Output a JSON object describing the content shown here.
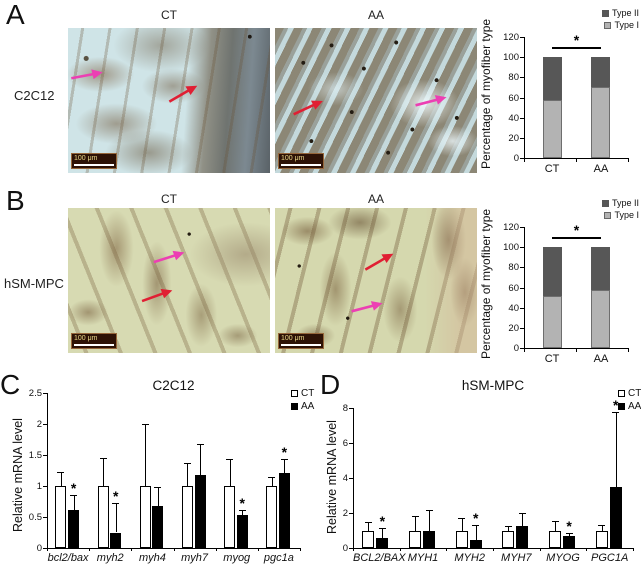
{
  "figure": {
    "panels": [
      {
        "letter": "A",
        "row_label": "C2C12",
        "columns": [
          "CT",
          "AA"
        ],
        "scale_bar_label": "100 μm"
      },
      {
        "letter": "B",
        "row_label": "hSM-MPC",
        "columns": [
          "CT",
          "AA"
        ],
        "scale_bar_label": "100 μm"
      },
      {
        "letter": "C"
      },
      {
        "letter": "D"
      }
    ]
  },
  "colors": {
    "arrow_red": "#e01f33",
    "arrow_magenta": "#ec3fb3",
    "type1_gray": "#b3b3b3",
    "type2_gray": "#575757",
    "ct_bar": "#ffffff",
    "aa_bar": "#000000",
    "scalebar_bg": "#2d1206",
    "scalebar_text": "#ead98a"
  },
  "chart_data": [
    {
      "id": "A",
      "type": "stacked-bar",
      "ylabel": "Percentage of myofiber type",
      "ylim": [
        0,
        120
      ],
      "yticks": [
        "0",
        "20",
        "40",
        "60",
        "80",
        "100",
        "120"
      ],
      "categories": [
        "CT",
        "AA"
      ],
      "series": [
        {
          "name": "Type I",
          "color": "#b3b3b3",
          "values": [
            58,
            70
          ]
        },
        {
          "name": "Type II",
          "color": "#575757",
          "values": [
            42,
            30
          ]
        }
      ],
      "legend_order": [
        "Type II",
        "Type I"
      ],
      "significance": {
        "symbol": "*",
        "y": 110
      }
    },
    {
      "id": "B",
      "type": "stacked-bar",
      "ylabel": "Percentage of myofiber type",
      "ylim": [
        0,
        120
      ],
      "yticks": [
        "0",
        "20",
        "40",
        "60",
        "80",
        "100",
        "120"
      ],
      "categories": [
        "CT",
        "AA"
      ],
      "series": [
        {
          "name": "Type I",
          "color": "#b3b3b3",
          "values": [
            52,
            58
          ]
        },
        {
          "name": "Type II",
          "color": "#575757",
          "values": [
            48,
            42
          ]
        }
      ],
      "legend_order": [
        "Type II",
        "Type I"
      ],
      "significance": {
        "symbol": "*",
        "y": 110
      }
    },
    {
      "id": "C",
      "type": "grouped-bar",
      "title": "C2C12",
      "ylabel": "Relative mRNA level",
      "ylim": [
        0,
        2.5
      ],
      "yticks": [
        "0",
        "0.5",
        "1",
        "1.5",
        "2",
        "2.5"
      ],
      "categories": [
        "bcl2/bax",
        "myh2",
        "myh4",
        "myh7",
        "myog",
        "pgc1a"
      ],
      "xtick_italic": true,
      "series": [
        {
          "name": "CT",
          "color": "#ffffff",
          "values": [
            1,
            1,
            1,
            1,
            1,
            1
          ],
          "errors": [
            0.22,
            0.45,
            1.0,
            0.37,
            0.44,
            0.14
          ]
        },
        {
          "name": "AA",
          "color": "#000000",
          "values": [
            0.62,
            0.25,
            0.67,
            1.17,
            0.53,
            1.21
          ],
          "errors": [
            0.23,
            0.47,
            0.31,
            0.5,
            0.08,
            0.23
          ]
        }
      ],
      "sig_categories": [
        0,
        1,
        4,
        5
      ],
      "sig_symbol": "*"
    },
    {
      "id": "D",
      "type": "grouped-bar",
      "title": "hSM-MPC",
      "ylabel": "Relative mRNA level",
      "ylim": [
        0,
        8
      ],
      "yticks": [
        "0",
        "2",
        "4",
        "6",
        "8"
      ],
      "categories": [
        "BCL2/BAX",
        "MYH1",
        "MYH2",
        "MYH7",
        "MYOG",
        "PGC1A"
      ],
      "xtick_italic": true,
      "series": [
        {
          "name": "CT",
          "color": "#ffffff",
          "values": [
            1,
            1,
            1,
            1,
            1,
            1
          ],
          "errors": [
            0.5,
            0.85,
            0.7,
            0.25,
            0.55,
            0.3
          ]
        },
        {
          "name": "AA",
          "color": "#000000",
          "values": [
            0.6,
            0.95,
            0.45,
            1.25,
            0.7,
            3.5
          ],
          "errors": [
            0.55,
            1.25,
            0.85,
            0.75,
            0.15,
            4.3
          ]
        }
      ],
      "sig_categories": [
        0,
        2,
        4,
        5
      ],
      "sig_symbol": "*"
    }
  ]
}
